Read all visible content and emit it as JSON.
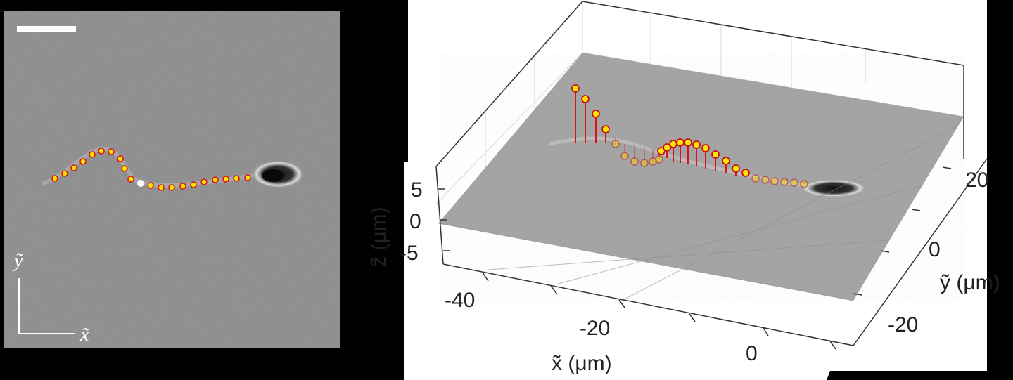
{
  "left_panel": {
    "axis_y_label": "ỹ",
    "axis_x_label": "x̃",
    "flagellum_points": [
      [
        78,
        254
      ],
      [
        92,
        247
      ],
      [
        105,
        239
      ],
      [
        118,
        230
      ],
      [
        131,
        220
      ],
      [
        144,
        215
      ],
      [
        158,
        216
      ],
      [
        171,
        226
      ],
      [
        177,
        240
      ],
      [
        186,
        255
      ],
      [
        214,
        264
      ],
      [
        229,
        267
      ],
      [
        244,
        267
      ],
      [
        260,
        265
      ],
      [
        275,
        263
      ],
      [
        290,
        259
      ],
      [
        306,
        256
      ],
      [
        321,
        255
      ],
      [
        336,
        254
      ],
      [
        352,
        253
      ]
    ],
    "head_marker": [
      200,
      261
    ],
    "colors": {
      "marker_fill": "#ffe600",
      "marker_edge": "#e0101a",
      "scale_bar": "#ffffff",
      "head_marker": "#ffffff"
    }
  },
  "chart_data": {
    "type": "scatter",
    "subtype": "3d-stem",
    "xlabel": "x̃ (μm)",
    "ylabel": "ỹ (μm)",
    "zlabel": "z̃ (μm)",
    "x_ticks": [
      "-40",
      "-20",
      "0"
    ],
    "y_ticks": [
      "20",
      "0",
      "-20"
    ],
    "z_ticks": [
      "5",
      "0",
      "-5"
    ],
    "grid": true,
    "stems_above": [
      [
        818,
        126,
        203
      ],
      [
        832,
        141,
        203
      ],
      [
        847,
        162,
        203
      ],
      [
        861,
        184,
        203
      ],
      [
        940,
        215,
        220
      ],
      [
        948,
        210,
        225
      ],
      [
        957,
        205,
        230
      ],
      [
        967,
        203,
        232
      ],
      [
        978,
        203,
        233
      ],
      [
        990,
        206,
        236
      ],
      [
        1003,
        211,
        240
      ],
      [
        1017,
        220,
        244
      ],
      [
        1032,
        229,
        247
      ],
      [
        1046,
        240,
        250
      ],
      [
        1060,
        246,
        252
      ]
    ],
    "stems_below": [
      [
        875,
        205,
        195
      ],
      [
        888,
        222,
        205
      ],
      [
        902,
        230,
        208
      ],
      [
        916,
        232,
        210
      ],
      [
        928,
        230,
        212
      ],
      [
        937,
        227,
        214
      ],
      [
        1074,
        254,
        252
      ],
      [
        1088,
        256,
        254
      ],
      [
        1101,
        258,
        255
      ],
      [
        1115,
        259,
        256
      ],
      [
        1129,
        260,
        257
      ],
      [
        1143,
        262,
        258
      ]
    ],
    "colors": {
      "stem": "#e0101a",
      "marker_fill": "#ffe600",
      "marker_edge": "#c8101a",
      "plane": "#a8a8a8"
    }
  }
}
